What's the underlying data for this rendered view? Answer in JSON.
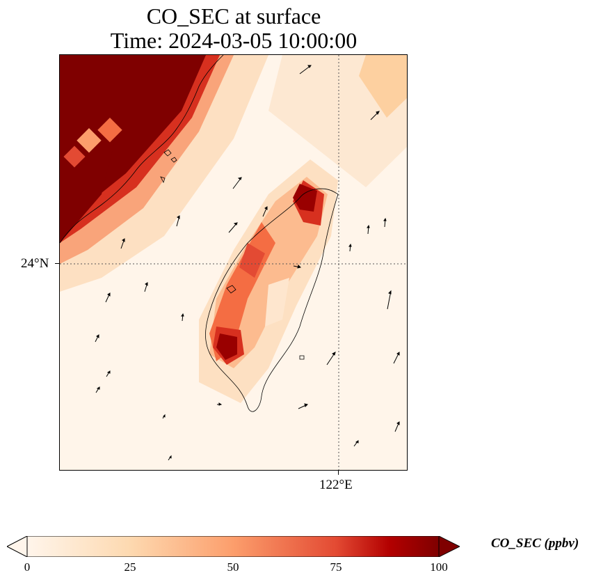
{
  "title": {
    "line1": "CO_SEC at surface",
    "line2": "Time: 2024-03-05 10:00:00"
  },
  "axes": {
    "lat_label": "24°N",
    "lon_label": "122°E"
  },
  "colorbar": {
    "label": "CO_SEC (ppbv)",
    "ticks": [
      "0",
      "25",
      "50",
      "75",
      "100"
    ],
    "colors": [
      "#fff5eb",
      "#fdd9b0",
      "#fc9e6c",
      "#e34a33",
      "#b30000",
      "#7f0000"
    ]
  },
  "map": {
    "background": "#fff5ea",
    "gridline_color": "#555555",
    "coastline_color": "#000000"
  }
}
